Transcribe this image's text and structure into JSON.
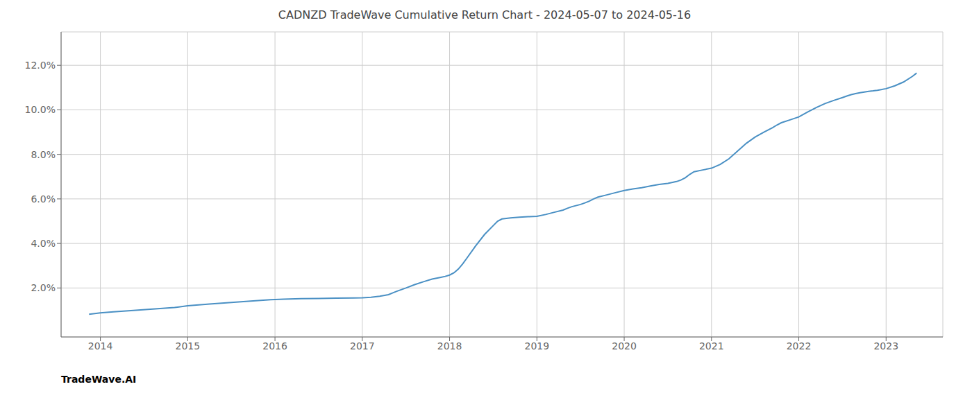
{
  "chart_data": {
    "type": "line",
    "title": "CADNZD TradeWave Cumulative Return Chart - 2024-05-07 to 2024-05-16",
    "annotations": [
      "TradeWave.AI"
    ],
    "color": "#4a90c4",
    "grid": true,
    "xlim": [
      2013.55,
      2023.65
    ],
    "xticks": [
      2014,
      2015,
      2016,
      2017,
      2018,
      2019,
      2020,
      2021,
      2022,
      2023
    ],
    "ylim": [
      -0.002,
      0.135
    ],
    "yticks": [
      {
        "value": 0.02,
        "label": "2.0%"
      },
      {
        "value": 0.04,
        "label": "4.0%"
      },
      {
        "value": 0.06,
        "label": "6.0%"
      },
      {
        "value": 0.08,
        "label": "8.0%"
      },
      {
        "value": 0.1,
        "label": "10.0%"
      },
      {
        "value": 0.12,
        "label": "12.0%"
      }
    ],
    "x": [
      2013.87,
      2014.0,
      2014.15,
      2014.35,
      2014.6,
      2014.85,
      2015.0,
      2015.25,
      2015.5,
      2015.75,
      2015.95,
      2016.1,
      2016.3,
      2016.5,
      2016.7,
      2016.9,
      2017.0,
      2017.1,
      2017.2,
      2017.3,
      2017.35,
      2017.4,
      2017.45,
      2017.5,
      2017.6,
      2017.7,
      2017.8,
      2017.9,
      2017.95,
      2018.0,
      2018.05,
      2018.1,
      2018.15,
      2018.2,
      2018.3,
      2018.4,
      2018.5,
      2018.55,
      2018.6,
      2018.7,
      2018.8,
      2018.9,
      2019.0,
      2019.1,
      2019.2,
      2019.3,
      2019.35,
      2019.4,
      2019.5,
      2019.55,
      2019.6,
      2019.65,
      2019.7,
      2019.8,
      2019.9,
      2020.0,
      2020.1,
      2020.2,
      2020.3,
      2020.4,
      2020.5,
      2020.6,
      2020.65,
      2020.7,
      2020.75,
      2020.8,
      2020.9,
      2021.0,
      2021.1,
      2021.2,
      2021.3,
      2021.4,
      2021.5,
      2021.6,
      2021.7,
      2021.75,
      2021.8,
      2021.9,
      2022.0,
      2022.1,
      2022.2,
      2022.3,
      2022.4,
      2022.5,
      2022.55,
      2022.6,
      2022.65,
      2022.7,
      2022.75,
      2022.8,
      2022.85,
      2022.9,
      2023.0,
      2023.1,
      2023.2,
      2023.3,
      2023.35
    ],
    "values": [
      0.0082,
      0.0088,
      0.0093,
      0.0098,
      0.0105,
      0.0112,
      0.012,
      0.0128,
      0.0135,
      0.0142,
      0.0147,
      0.015,
      0.0152,
      0.0153,
      0.0154,
      0.0155,
      0.0156,
      0.0158,
      0.0163,
      0.017,
      0.0178,
      0.0186,
      0.0193,
      0.02,
      0.0215,
      0.0228,
      0.024,
      0.0248,
      0.0252,
      0.0258,
      0.0268,
      0.0285,
      0.0308,
      0.0335,
      0.039,
      0.044,
      0.048,
      0.05,
      0.051,
      0.0515,
      0.0518,
      0.052,
      0.0522,
      0.053,
      0.054,
      0.055,
      0.0558,
      0.0565,
      0.0575,
      0.0582,
      0.059,
      0.06,
      0.0608,
      0.0618,
      0.0628,
      0.0638,
      0.0645,
      0.065,
      0.0658,
      0.0665,
      0.067,
      0.0678,
      0.0685,
      0.0695,
      0.071,
      0.0722,
      0.073,
      0.0738,
      0.0755,
      0.078,
      0.0815,
      0.085,
      0.0878,
      0.09,
      0.092,
      0.0932,
      0.0942,
      0.0955,
      0.0968,
      0.099,
      0.101,
      0.1028,
      0.1042,
      0.1055,
      0.1062,
      0.1068,
      0.1073,
      0.1077,
      0.108,
      0.1083,
      0.1085,
      0.1088,
      0.1095,
      0.1108,
      0.1125,
      0.115,
      0.1165
    ]
  }
}
